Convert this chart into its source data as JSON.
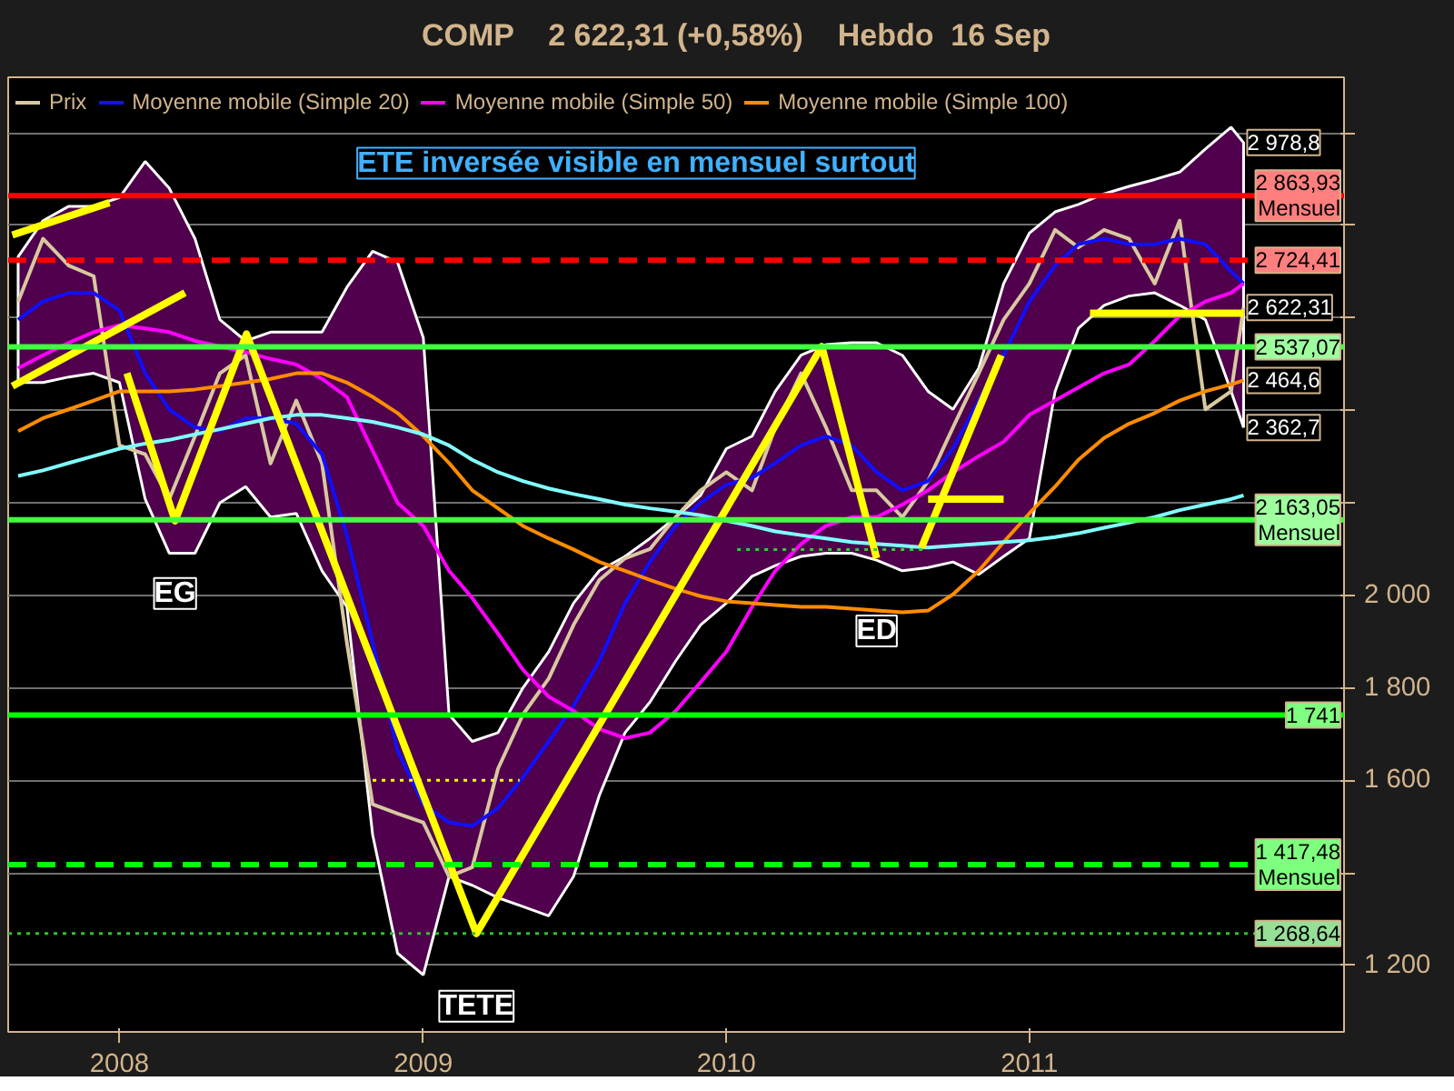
{
  "chart_data": {
    "type": "line",
    "title": "COMP    2 622,31 (+0,58%)    Hebdo  16 Sep",
    "x": [
      "2007-09-01",
      "2007-10-01",
      "2007-11-01",
      "2007-12-01",
      "2008-01-01",
      "2008-02-01",
      "2008-03-01",
      "2008-04-01",
      "2008-05-01",
      "2008-06-01",
      "2008-07-01",
      "2008-08-01",
      "2008-09-01",
      "2008-10-01",
      "2008-11-01",
      "2008-12-01",
      "2009-01-01",
      "2009-02-01",
      "2009-03-01",
      "2009-04-01",
      "2009-05-01",
      "2009-06-01",
      "2009-07-01",
      "2009-08-01",
      "2009-09-01",
      "2009-10-01",
      "2009-11-01",
      "2009-12-01",
      "2010-01-01",
      "2010-02-01",
      "2010-03-01",
      "2010-04-01",
      "2010-05-01",
      "2010-06-01",
      "2010-07-01",
      "2010-08-01",
      "2010-09-01",
      "2010-10-01",
      "2010-11-01",
      "2010-12-01",
      "2011-01-01",
      "2011-02-01",
      "2011-03-01",
      "2011-04-01",
      "2011-05-01",
      "2011-06-01",
      "2011-07-01",
      "2011-08-01",
      "2011-09-01",
      "2011-09-16"
    ],
    "series": [
      {
        "name": "Prix",
        "color": "#d8c8a0",
        "values": [
          2635,
          2771,
          2713,
          2690,
          2324,
          2305,
          2208,
          2344,
          2480,
          2519,
          2285,
          2421,
          2285,
          1897,
          1548,
          1528,
          1509,
          1392,
          1412,
          1625,
          1742,
          1820,
          1936,
          2033,
          2080,
          2100,
          2169,
          2227,
          2266,
          2227,
          2363,
          2480,
          2363,
          2227,
          2227,
          2169,
          2247,
          2363,
          2480,
          2596,
          2674,
          2790,
          2752,
          2790,
          2771,
          2674,
          2810,
          2402,
          2441,
          2622.31
        ]
      },
      {
        "name": "Moyenne mobile (Simple 20)",
        "color": "#1010ff",
        "values": [
          2596,
          2635,
          2654,
          2654,
          2616,
          2480,
          2402,
          2363,
          2355,
          2383,
          2383,
          2371,
          2305,
          2130,
          1897,
          1664,
          1548,
          1509,
          1501,
          1540,
          1606,
          1684,
          1761,
          1858,
          1983,
          2072,
          2150,
          2200,
          2239,
          2254,
          2286,
          2324,
          2344,
          2324,
          2266,
          2227,
          2247,
          2317,
          2421,
          2519,
          2635,
          2713,
          2759,
          2771,
          2759,
          2759,
          2771,
          2759,
          2700,
          2674
        ],
        "upper": [
          2732,
          2810,
          2841,
          2841,
          2860,
          2938,
          2880,
          2771,
          2596,
          2550,
          2569,
          2569,
          2569,
          2666,
          2744,
          2720,
          2557,
          1742,
          1684,
          1703,
          1800,
          1878,
          1983,
          2053,
          2084,
          2123,
          2169,
          2216,
          2317,
          2344,
          2441,
          2519,
          2542,
          2546,
          2546,
          2519,
          2441,
          2402,
          2491,
          2674,
          2783,
          2829,
          2845,
          2868,
          2884,
          2899,
          2915,
          2965,
          3012,
          2978.8
        ],
        "lower": [
          2460,
          2460,
          2472,
          2480,
          2460,
          2208,
          2091,
          2091,
          2200,
          2235,
          2169,
          2177,
          2053,
          1975,
          1482,
          1226,
          1179,
          1392,
          1373,
          1346,
          1327,
          1307,
          1392,
          1567,
          1703,
          1769,
          1858,
          1936,
          1983,
          2041,
          2064,
          2084,
          2091,
          2091,
          2076,
          2053,
          2060,
          2072,
          2045,
          2084,
          2123,
          2441,
          2577,
          2627,
          2647,
          2654,
          2627,
          2596,
          2441,
          2362.7
        ]
      },
      {
        "name": "Moyenne mobile (Simple 50)",
        "color": "#ff00ff",
        "values": [
          2491,
          2519,
          2546,
          2569,
          2584,
          2577,
          2569,
          2550,
          2538,
          2526,
          2511,
          2499,
          2468,
          2429,
          2313,
          2200,
          2150,
          2053,
          1994,
          1917,
          1839,
          1781,
          1750,
          1711,
          1691,
          1703,
          1750,
          1812,
          1878,
          1975,
          2053,
          2111,
          2150,
          2169,
          2169,
          2196,
          2227,
          2266,
          2301,
          2332,
          2390,
          2421,
          2449,
          2480,
          2499,
          2550,
          2604,
          2635,
          2654,
          2674
        ]
      },
      {
        "name": "Moyenne mobile (Simple 100)",
        "color": "#ff8c00",
        "values": [
          2355,
          2383,
          2402,
          2421,
          2441,
          2441,
          2441,
          2445,
          2452,
          2460,
          2468,
          2480,
          2480,
          2460,
          2429,
          2394,
          2344,
          2286,
          2227,
          2188,
          2150,
          2123,
          2099,
          2072,
          2053,
          2033,
          2014,
          1998,
          1987,
          1983,
          1979,
          1975,
          1975,
          1971,
          1967,
          1963,
          1967,
          2002,
          2053,
          2115,
          2177,
          2235,
          2293,
          2340,
          2371,
          2394,
          2421,
          2441,
          2456,
          2464.6
        ]
      },
      {
        "color": "#80ffff",
        "values": [
          2258,
          2270,
          2286,
          2301,
          2317,
          2328,
          2336,
          2348,
          2359,
          2371,
          2383,
          2390,
          2390,
          2383,
          2375,
          2363,
          2348,
          2324,
          2293,
          2266,
          2247,
          2231,
          2219,
          2208,
          2196,
          2188,
          2181,
          2173,
          2161,
          2150,
          2138,
          2130,
          2123,
          2115,
          2111,
          2107,
          2103,
          2107,
          2111,
          2115,
          2119,
          2126,
          2134,
          2146,
          2157,
          2169,
          2184,
          2196,
          2208,
          2216
        ]
      },
      {
        "color": "#ffff00",
        "x": [
          "2007-08-25",
          "2007-12-20"
        ],
        "values": [
          2779,
          2849
        ]
      },
      {
        "color": "#ffff00",
        "x": [
          "2007-08-25",
          "2008-03-20"
        ],
        "values": [
          2452,
          2654
        ]
      },
      {
        "color": "#ffff00",
        "x": [
          "2008-01-10",
          "2008-03-08",
          "2008-06-02",
          "2009-03-06",
          "2010-04-26",
          "2010-07-01"
        ],
        "values": [
          2480,
          2161,
          2565,
          1268.64,
          2538,
          2080
        ]
      },
      {
        "color": "#ffff00",
        "x": [
          "2010-08-24",
          "2010-11-28"
        ],
        "values": [
          2103,
          2519
        ]
      },
      {
        "color": "#ffff00",
        "x": [
          "2010-09-01",
          "2010-12-01"
        ],
        "values": [
          2208,
          2208
        ]
      },
      {
        "color": "#ffff00",
        "x": [
          "2011-03-15",
          "2011-09-16"
        ],
        "values": [
          2610,
          2610
        ]
      },
      {
        "color": "#ffff00",
        "line_style": "dotted",
        "x": [
          "2008-11-01",
          "2009-04-27"
        ],
        "values": [
          1600,
          1600
        ]
      },
      {
        "color": "#30d030",
        "line_style": "dotted",
        "x": [
          "2010-01-14",
          "2010-08-31"
        ],
        "values": [
          2099,
          2099
        ]
      }
    ],
    "ref_lines": [
      {
        "axis": "y",
        "value": 2863.93,
        "label": "2 863,93\nMensuel",
        "color": "#ff0000",
        "line_style": "solid"
      },
      {
        "axis": "y",
        "value": 2724.41,
        "label": "2 724,41",
        "color": "#ff0000",
        "line_style": "dashed"
      },
      {
        "axis": "y",
        "value": 2537.07,
        "label": "2 537,07",
        "color": "#40ff40",
        "line_style": "solid"
      },
      {
        "axis": "y",
        "value": 2163.05,
        "label": "2 163,05\nMensuel",
        "color": "#40ff40",
        "line_style": "solid"
      },
      {
        "axis": "y",
        "value": 1741,
        "label": "1 741",
        "color": "#00ff00",
        "line_style": "solid"
      },
      {
        "axis": "y",
        "value": 1417.48,
        "label": "1 417,48\nMensuel",
        "color": "#00ff00",
        "line_style": "dashed"
      },
      {
        "axis": "y",
        "value": 1268.64,
        "label": "1 268,64",
        "color": "#30c030",
        "line_style": "dotted"
      }
    ],
    "annotations": [
      "ETE inversée visible en mensuel surtout",
      {
        "text": "EG",
        "x": "2008-03-08",
        "y": 2161
      },
      {
        "text": "TETE",
        "x": "2009-03-06",
        "y": 1268.64
      },
      {
        "text": "ED",
        "x": "2010-07-01",
        "y": 2080
      },
      {
        "text": "2 978,8",
        "x": "2011-09-16",
        "y": 2978.8
      },
      {
        "text": "2 622,31",
        "x": "2011-09-16",
        "y": 2622.31
      },
      {
        "text": "2 464,6",
        "x": "2011-09-16",
        "y": 2464.6
      },
      {
        "text": "2 362,7",
        "x": "2011-09-16",
        "y": 2362.7
      }
    ],
    "xlim": [
      "2007-08-20",
      "2012-01-15"
    ],
    "xticks": [
      {
        "value": "2008-01-01",
        "label": "2008"
      },
      {
        "value": "2009-01-01",
        "label": "2009"
      },
      {
        "value": "2010-01-01",
        "label": "2010"
      },
      {
        "value": "2011-01-01",
        "label": "2011"
      }
    ],
    "ylim": [
      1056,
      3120
    ],
    "yticks": [
      {
        "value": 1200,
        "label": "1 200"
      },
      {
        "value": 1400,
        "label": null
      },
      {
        "value": 1600,
        "label": "1 600"
      },
      {
        "value": 1800,
        "label": "1 800"
      },
      {
        "value": 2000,
        "label": "2 000"
      },
      {
        "value": 2200,
        "label": null
      },
      {
        "value": 2400,
        "label": null
      },
      {
        "value": 2600,
        "label": null
      },
      {
        "value": 2800,
        "label": null
      },
      {
        "value": 3000,
        "label": null
      }
    ],
    "grid": "y",
    "legend": "top left"
  }
}
